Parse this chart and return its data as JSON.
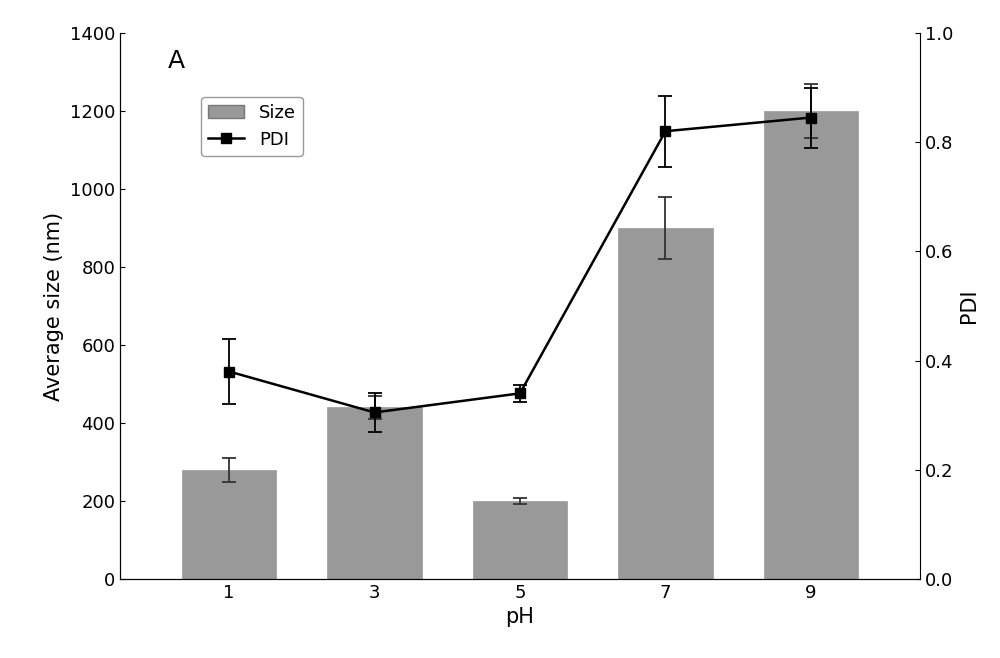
{
  "ph_labels": [
    "1",
    "3",
    "5",
    "7",
    "9"
  ],
  "ph_positions": [
    1,
    3,
    5,
    7,
    9
  ],
  "bar_heights": [
    280,
    440,
    200,
    900,
    1200
  ],
  "bar_errors": [
    30,
    30,
    8,
    80,
    70
  ],
  "pdi_values": [
    0.38,
    0.305,
    0.34,
    0.82,
    0.845
  ],
  "pdi_errors": [
    0.06,
    0.035,
    0.015,
    0.065,
    0.055
  ],
  "bar_color": "#999999",
  "bar_edgecolor": "#999999",
  "line_color": "#000000",
  "marker_color": "#000000",
  "background_color": "#FFFFFF",
  "title": "A",
  "xlabel": "pH",
  "ylabel_left": "Average size (nm)",
  "ylabel_right": "PDI",
  "ylim_left": [
    0,
    1400
  ],
  "ylim_right": [
    0.0,
    1.0
  ],
  "yticks_left": [
    0,
    200,
    400,
    600,
    800,
    1000,
    1200,
    1400
  ],
  "yticks_right": [
    0.0,
    0.2,
    0.4,
    0.6,
    0.8,
    1.0
  ],
  "bar_width": 1.3,
  "legend_size_label": "Size",
  "legend_pdi_label": "PDI",
  "title_fontsize": 18,
  "label_fontsize": 15,
  "tick_fontsize": 13
}
